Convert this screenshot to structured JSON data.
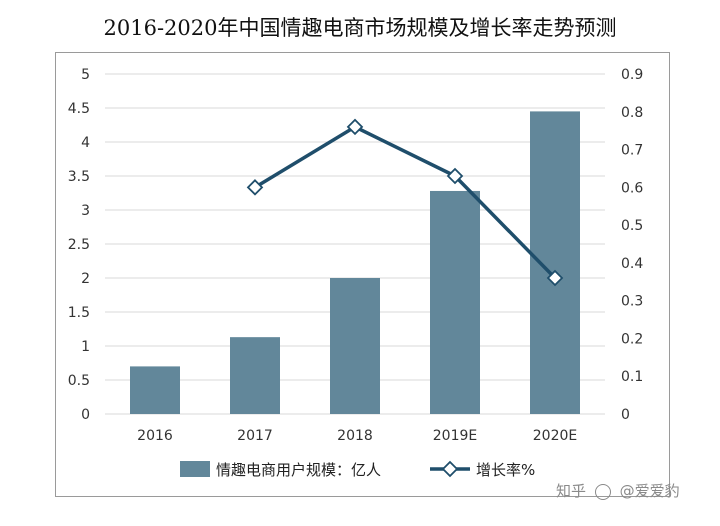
{
  "chart_data": {
    "type": "bar",
    "title": "2016-2020年中国情趣电商市场规模及增长率走势预测",
    "categories": [
      "2016",
      "2017",
      "2018",
      "2019E",
      "2020E"
    ],
    "series": [
      {
        "name": "情趣电商用户规模：亿人",
        "kind": "bar",
        "axis": "left",
        "values": [
          0.7,
          1.13,
          2.0,
          3.28,
          4.45
        ],
        "color": "#62879a"
      },
      {
        "name": "增长率%",
        "kind": "line",
        "axis": "right",
        "values": [
          null,
          0.6,
          0.76,
          0.63,
          0.36
        ],
        "color": "#1f4e6b"
      }
    ],
    "ylim_left": [
      0,
      5
    ],
    "yticks_left": [
      "0",
      "0.5",
      "1",
      "1.5",
      "2",
      "2.5",
      "3",
      "3.5",
      "4",
      "4.5",
      "5"
    ],
    "ylim_right": [
      0,
      0.9
    ],
    "yticks_right": [
      "0",
      "0.1",
      "0.2",
      "0.3",
      "0.4",
      "0.5",
      "0.6",
      "0.7",
      "0.8",
      "0.9"
    ],
    "grid": true,
    "legend_position": "bottom"
  },
  "watermark": {
    "text_a": "知乎",
    "text_b": "@爱爱豹"
  }
}
